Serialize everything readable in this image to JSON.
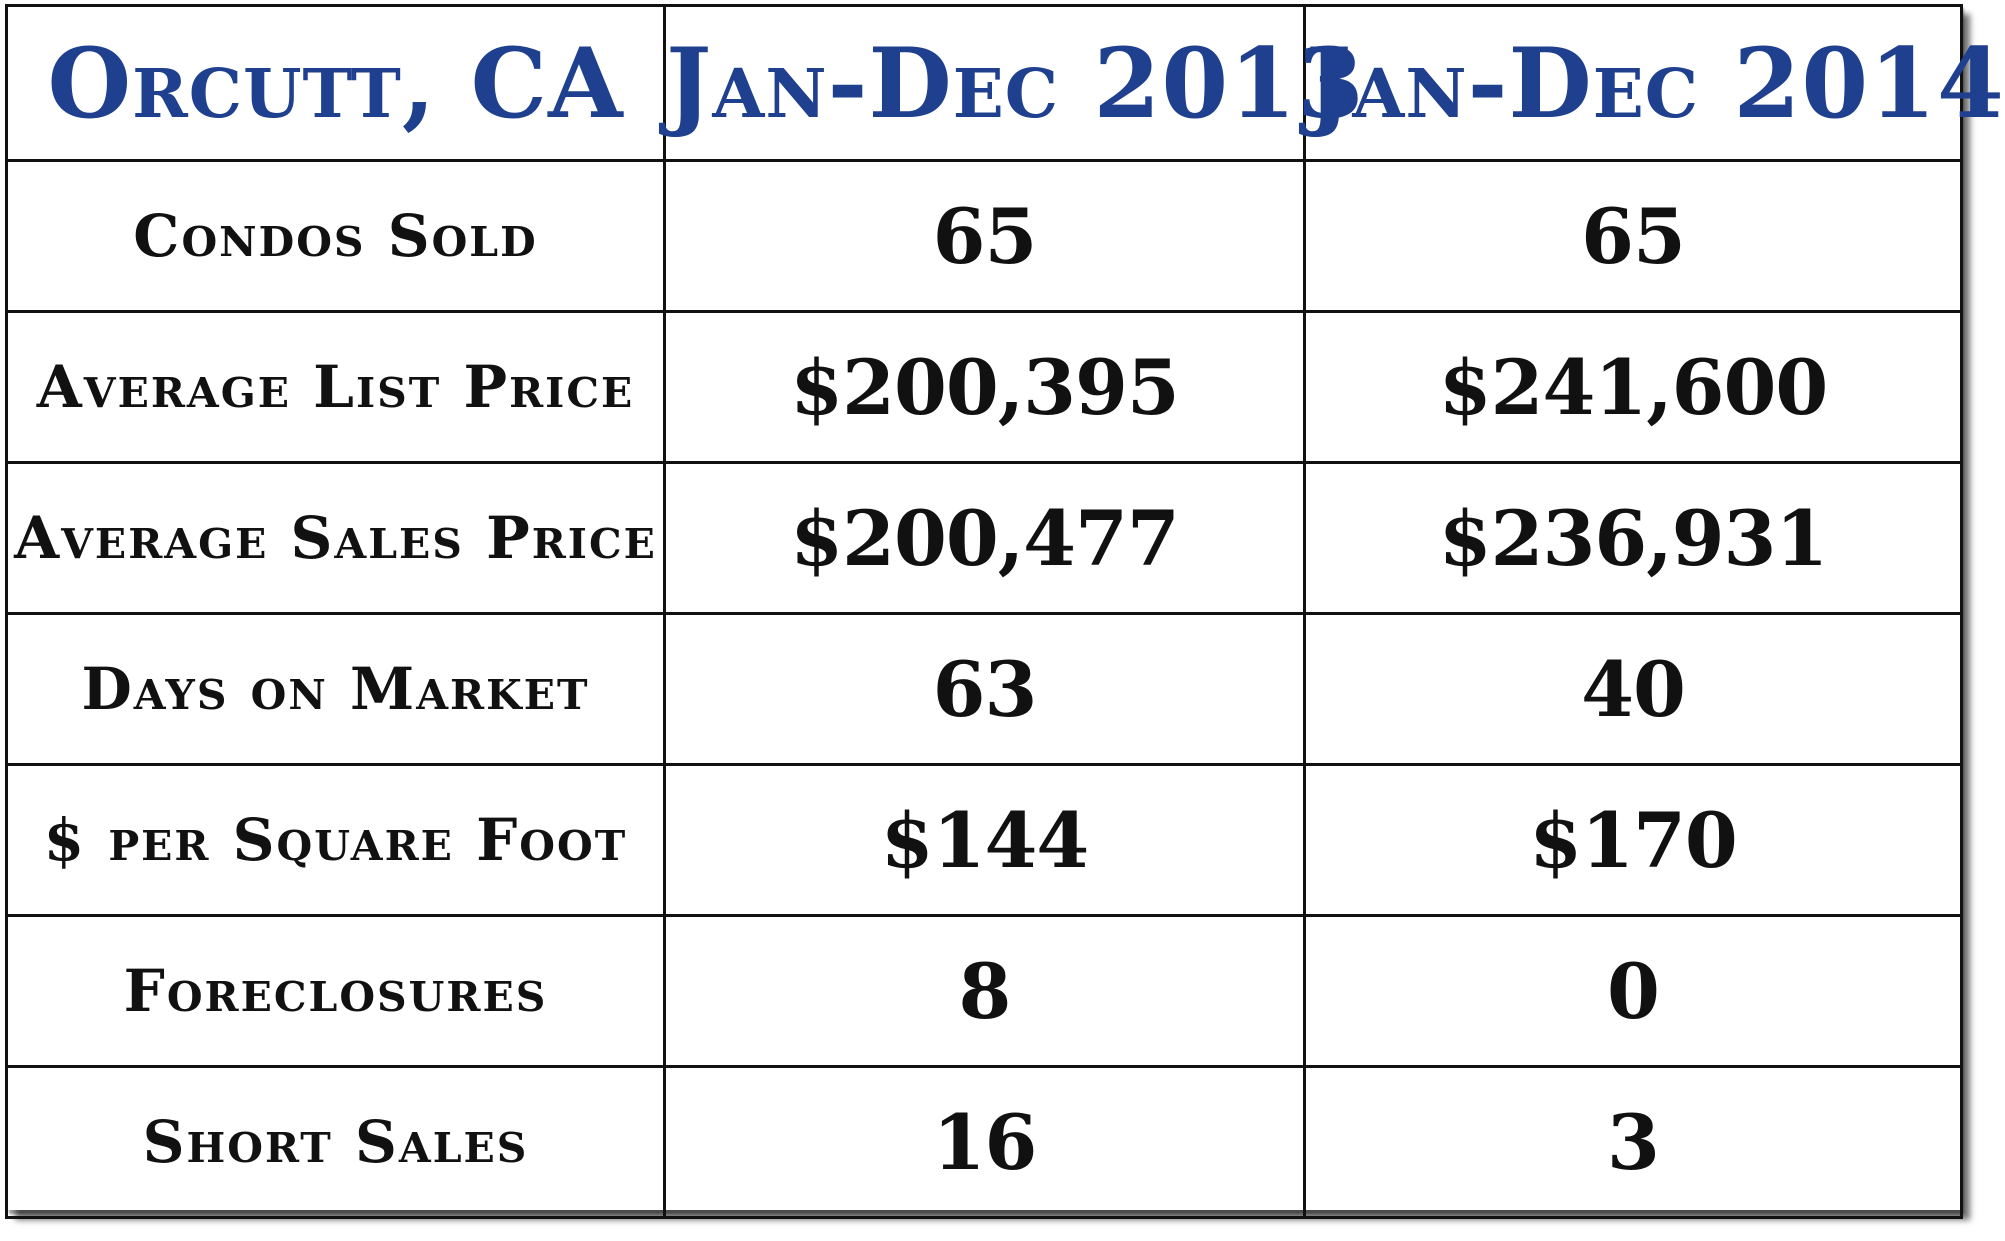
{
  "chart_data": {
    "type": "table",
    "columns": [
      "Orcutt, CA",
      "Jan-Dec 2013",
      "Jan-Dec 2014"
    ],
    "rows": [
      {
        "label": "Condos Sold",
        "y2013": "65",
        "y2014": "65"
      },
      {
        "label": "Average List Price",
        "y2013": "$200,395",
        "y2014": "$241,600"
      },
      {
        "label": "Average Sales Price",
        "y2013": "$200,477",
        "y2014": "$236,931"
      },
      {
        "label": "Days on Market",
        "y2013": "63",
        "y2014": "40"
      },
      {
        "label": "$ per Square Foot",
        "y2013": "$144",
        "y2014": "$170"
      },
      {
        "label": "Foreclosures",
        "y2013": "8",
        "y2014": "0"
      },
      {
        "label": "Short Sales",
        "y2013": "16",
        "y2014": "3"
      }
    ]
  },
  "colors": {
    "header_text": "#1f3f8f",
    "body_text": "#111111",
    "grid": "#111111",
    "background": "#ffffff"
  }
}
